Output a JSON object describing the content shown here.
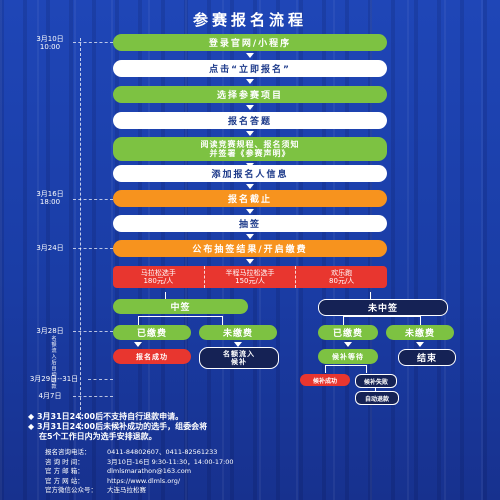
{
  "title": "参赛报名流程",
  "dates": {
    "d1": "3月10日",
    "d1t": "10:00",
    "d2": "3月16日",
    "d2t": "18:00",
    "d3": "3月24日",
    "d4": "3月28日",
    "d5": "3月29日--31日",
    "d6": "4月7日",
    "vertical": "名额流入后自动退款"
  },
  "steps": {
    "s1": "登录官网/小程序",
    "s2": "点击“立即报名”",
    "s3": "选择参赛项目",
    "s4": "报名答题",
    "s5a": "阅读竞赛规程、报名须知",
    "s5b": "并签署《参赛声明》",
    "s6": "添加报名人信息",
    "s7": "报名截止",
    "s8": "抽签",
    "s9": "公布抽签结果/开启缴费"
  },
  "fees": [
    {
      "name": "马拉松选手",
      "price": "180元/人"
    },
    {
      "name": "半程马拉松选手",
      "price": "150元/人"
    },
    {
      "name": "欢乐跑",
      "price": "80元/人"
    }
  ],
  "branches": {
    "won": "中签",
    "lost": "未中签",
    "paid": "已缴费",
    "unpaid": "未缴费",
    "success": "报名成功",
    "transfer_a": "名额流入",
    "transfer_b": "候补",
    "waiting": "候补等待",
    "end": "结束",
    "sub_success": "候补成功",
    "sub_fail": "候补失败",
    "refund": "自动退款"
  },
  "notes": [
    "3月31日24:00后不支持自行退款申请。",
    "3月31日24:00后未候补成功的选手，组委会将",
    "在5个工作日内为选手安排退款。"
  ],
  "contact": [
    {
      "k": "报名咨询电话：",
      "v": "0411-84802607、0411-82561233"
    },
    {
      "k": "咨  询  时  间：",
      "v": "3月10日-16日 9:30-11:30，14:00-17:00"
    },
    {
      "k": "官  方  邮  箱：",
      "v": "dlmlsmarathon@163.com"
    },
    {
      "k": "官  方  网  站：",
      "v": "https://www.dlmls.org/"
    },
    {
      "k": "官方微信公众号：",
      "v": "大连马拉松赛"
    }
  ],
  "colors": {
    "green": "#7dc242",
    "orange": "#f7931e",
    "red": "#e8362f",
    "navy": "#152255",
    "bg": "#1d3fa8"
  }
}
